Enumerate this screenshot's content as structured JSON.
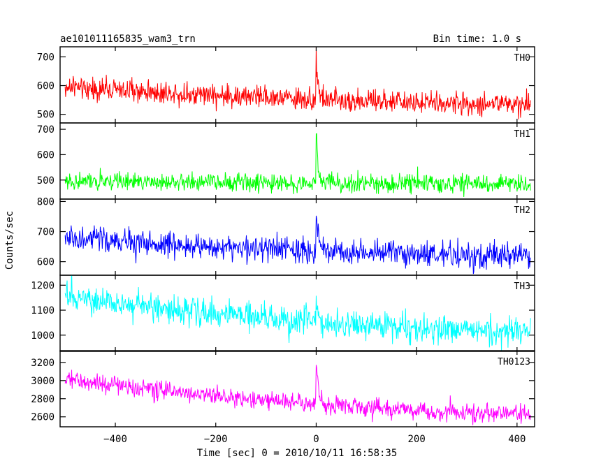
{
  "header": {
    "title": "ae101011165835_wam3_trn",
    "bin_time": "Bin time: 1.0 s"
  },
  "colors": {
    "axes": "#000000",
    "background": "#ffffff"
  },
  "chart_data": {
    "type": "line",
    "layout": "5 vertically stacked panels sharing the x axis",
    "title": "ae101011165835_wam3_trn",
    "xlabel": "Time [sec] 0 = 2010/10/11 16:58:35",
    "ylabel": "Counts/sec",
    "xlim": [
      -510,
      435
    ],
    "x_ticks": [
      -400,
      -200,
      0,
      200,
      400
    ],
    "x_tick_labels": [
      "−400",
      "−200",
      "0",
      "200",
      "400"
    ],
    "data_x_range": [
      -500,
      427
    ],
    "bin_time_s": 1.0,
    "burst_time_s": 0,
    "grid": false,
    "panels": [
      {
        "name": "TH0",
        "color": "#ff0000",
        "ylim": [
          470,
          735
        ],
        "y_ticks": [
          500,
          600,
          700
        ],
        "y_tick_labels": [
          "500",
          "600",
          "700"
        ],
        "start_level": 595,
        "end_level": 535,
        "noise_amplitude": 35,
        "peak": 722
      },
      {
        "name": "TH1",
        "color": "#00ff00",
        "ylim": [
          425,
          725
        ],
        "y_ticks": [
          500,
          600,
          700
        ],
        "y_tick_labels": [
          "500",
          "600",
          "700"
        ],
        "start_level": 495,
        "end_level": 485,
        "noise_amplitude": 32,
        "peak": 712
      },
      {
        "name": "TH2",
        "color": "#0000ff",
        "ylim": [
          555,
          808
        ],
        "y_ticks": [
          600,
          700,
          800
        ],
        "y_tick_labels": [
          "600",
          "700",
          "800"
        ],
        "start_level": 678,
        "end_level": 618,
        "noise_amplitude": 38,
        "peak": 795
      },
      {
        "name": "TH3",
        "color": "#00ffff",
        "ylim": [
          935,
          1240
        ],
        "y_ticks": [
          1000,
          1100,
          1200
        ],
        "y_tick_labels": [
          "1000",
          "1100",
          "1200"
        ],
        "start_level": 1150,
        "end_level": 1015,
        "noise_amplitude": 50,
        "peak": 1160
      },
      {
        "name": "TH0123",
        "color": "#ff00ff",
        "ylim": [
          2490,
          3330
        ],
        "y_ticks": [
          2600,
          2800,
          3000,
          3200
        ],
        "y_tick_labels": [
          "2600",
          "2800",
          "3000",
          "3200"
        ],
        "start_level": 3010,
        "end_level": 2630,
        "noise_amplitude": 90,
        "peak": 3330
      }
    ]
  }
}
